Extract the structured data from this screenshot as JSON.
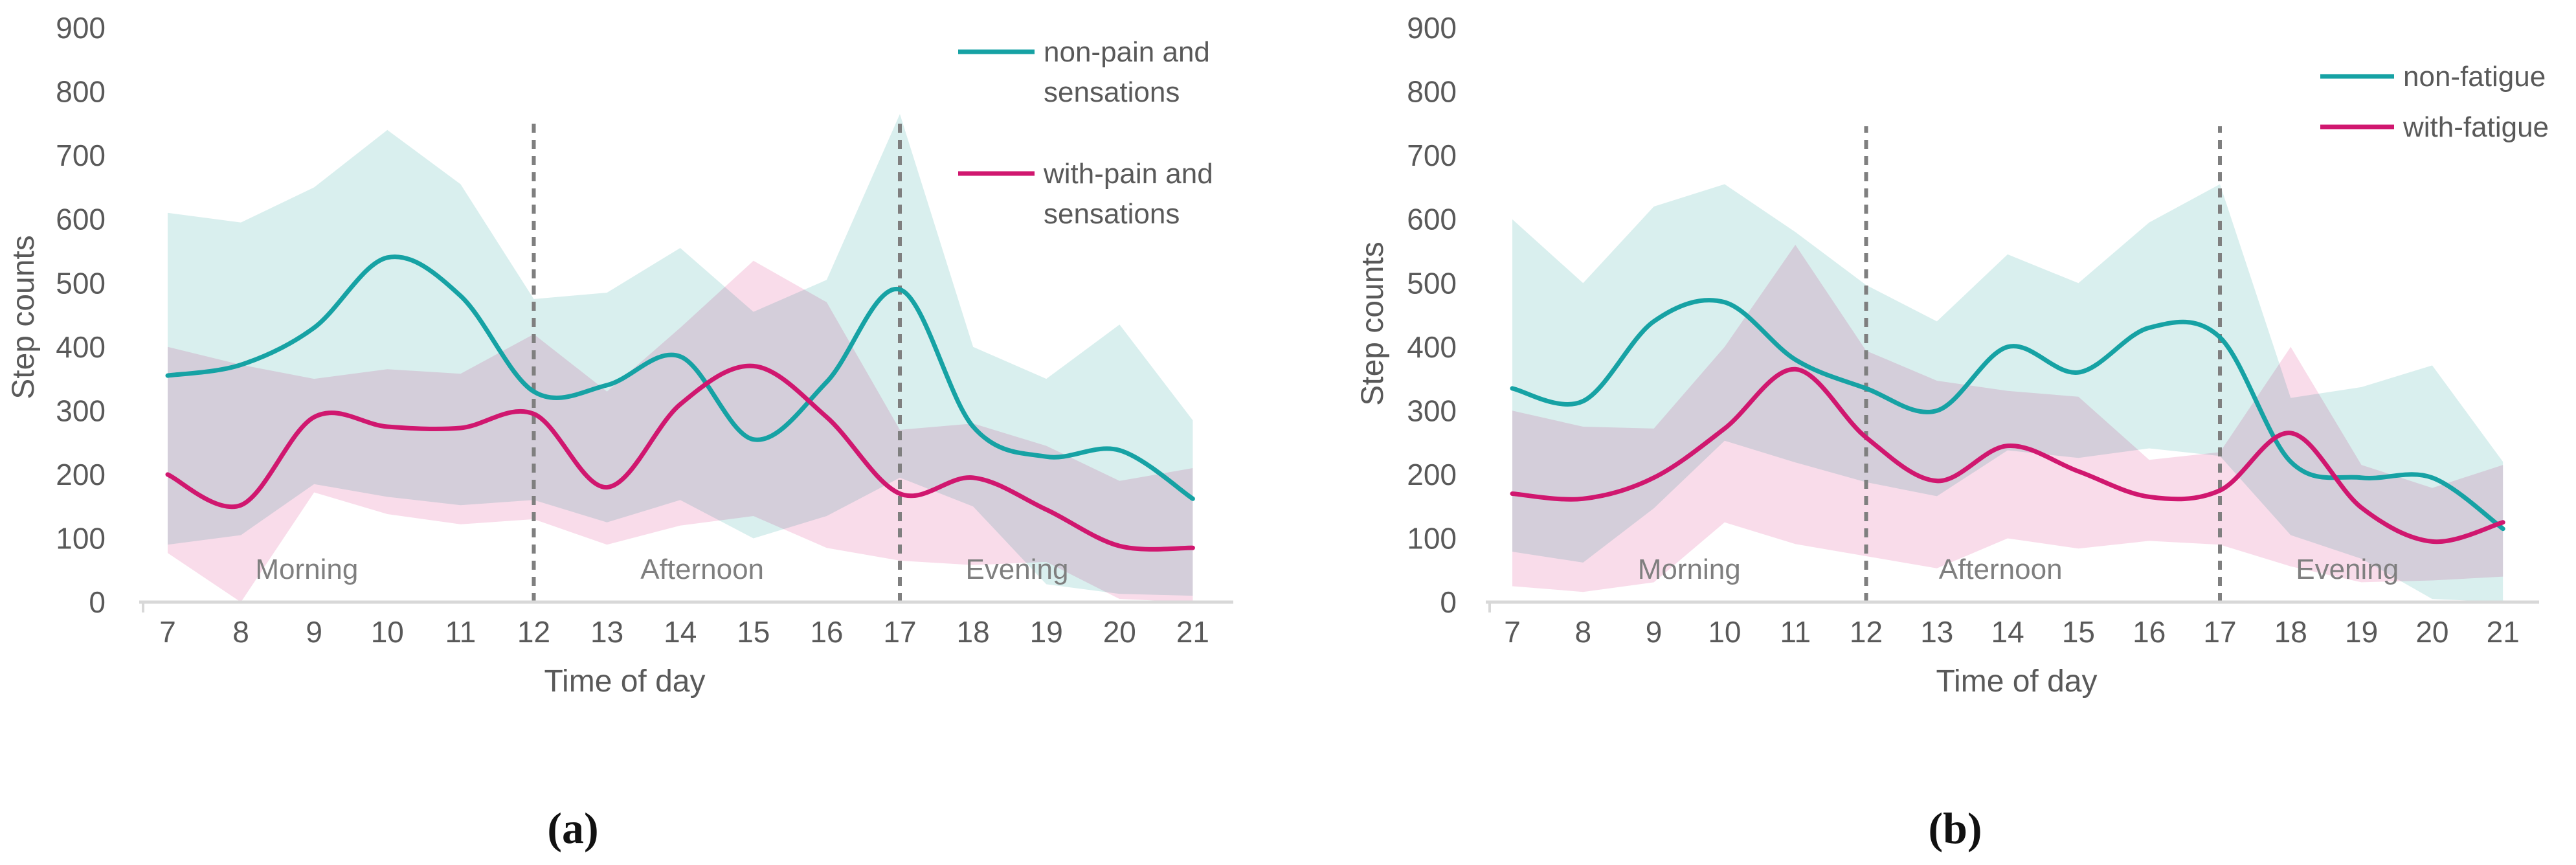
{
  "figure": {
    "background": "#ffffff",
    "captions": {
      "a": "(a)",
      "b": "(b)"
    }
  },
  "colors": {
    "teal_line": "#16a2a4",
    "magenta_line": "#d0176f",
    "teal_band": "#d9efee",
    "pink_band": "#f9dcea",
    "axis_line": "#d8d8d8",
    "tick_text": "#595959",
    "period_text": "#7f7f7f",
    "guide_dash": "#7f7f7f"
  },
  "chart_data": [
    {
      "type": "line",
      "panel": "a",
      "ylabel": "Step counts",
      "xlabel": "Time of day",
      "ylim": [
        0,
        900
      ],
      "y_ticks": [
        900,
        800,
        700,
        600,
        500,
        400,
        300,
        200,
        100,
        0
      ],
      "x": [
        7,
        8,
        9,
        10,
        11,
        12,
        13,
        14,
        15,
        16,
        17,
        18,
        19,
        20,
        21
      ],
      "grid": "off",
      "legend_position": "top-right",
      "series": [
        {
          "name": "non-pain and sensations",
          "label_lines": [
            "non-pain and",
            "sensations"
          ],
          "color_key": "teal",
          "values": [
            355,
            372,
            430,
            540,
            480,
            330,
            340,
            385,
            255,
            345,
            490,
            275,
            228,
            238,
            162
          ],
          "band_upper": [
            610,
            595,
            650,
            740,
            655,
            475,
            485,
            555,
            455,
            505,
            765,
            400,
            350,
            435,
            285
          ],
          "band_lower": [
            90,
            105,
            185,
            165,
            152,
            160,
            125,
            160,
            100,
            135,
            195,
            150,
            28,
            13,
            10
          ]
        },
        {
          "name": "with-pain and sensations",
          "label_lines": [
            "with-pain and",
            "sensations"
          ],
          "color_key": "magenta",
          "values": [
            200,
            152,
            290,
            275,
            273,
            295,
            180,
            310,
            370,
            290,
            170,
            195,
            145,
            88,
            85
          ],
          "band_upper": [
            400,
            372,
            350,
            365,
            358,
            420,
            330,
            430,
            535,
            470,
            270,
            280,
            245,
            190,
            210
          ],
          "band_lower": [
            77,
            0,
            172,
            138,
            122,
            130,
            90,
            120,
            135,
            85,
            65,
            58,
            63,
            5,
            0
          ]
        }
      ],
      "guides": [
        12,
        17
      ],
      "periods": [
        {
          "label": "Morning",
          "x_hour": 8.9
        },
        {
          "label": "Afternoon",
          "x_hour": 14.3
        },
        {
          "label": "Evening",
          "x_hour": 18.6
        }
      ]
    },
    {
      "type": "line",
      "panel": "b",
      "ylabel": "Step counts",
      "xlabel": "Time of day",
      "ylim": [
        0,
        900
      ],
      "y_ticks": [
        900,
        800,
        700,
        600,
        500,
        400,
        300,
        200,
        100,
        0
      ],
      "x": [
        7,
        8,
        9,
        10,
        11,
        12,
        13,
        14,
        15,
        16,
        17,
        18,
        19,
        20,
        21
      ],
      "grid": "off",
      "legend_position": "top-right",
      "series": [
        {
          "name": "non-fatigue",
          "label_lines": [
            "non-fatigue"
          ],
          "color_key": "teal",
          "values": [
            335,
            315,
            440,
            470,
            380,
            335,
            300,
            400,
            360,
            430,
            415,
            220,
            195,
            195,
            115
          ],
          "band_upper": [
            600,
            500,
            620,
            655,
            580,
            497,
            440,
            545,
            500,
            595,
            655,
            320,
            337,
            371,
            220
          ],
          "band_lower": [
            79,
            62,
            147,
            253,
            219,
            188,
            166,
            238,
            226,
            241,
            229,
            105,
            68,
            5,
            0
          ]
        },
        {
          "name": "with-fatigue",
          "label_lines": [
            "with-fatigue"
          ],
          "color_key": "magenta",
          "values": [
            170,
            162,
            195,
            272,
            365,
            258,
            190,
            245,
            205,
            165,
            175,
            265,
            148,
            95,
            125
          ],
          "band_upper": [
            300,
            275,
            272,
            400,
            560,
            394,
            347,
            331,
            322,
            223,
            235,
            400,
            215,
            179,
            215
          ],
          "band_lower": [
            25,
            16,
            31,
            125,
            91,
            72,
            53,
            100,
            84,
            96,
            90,
            56,
            31,
            34,
            40
          ]
        }
      ],
      "guides": [
        12,
        17
      ],
      "periods": [
        {
          "label": "Morning",
          "x_hour": 9.5
        },
        {
          "label": "Afternoon",
          "x_hour": 13.9
        },
        {
          "label": "Evening",
          "x_hour": 18.8
        }
      ]
    }
  ]
}
